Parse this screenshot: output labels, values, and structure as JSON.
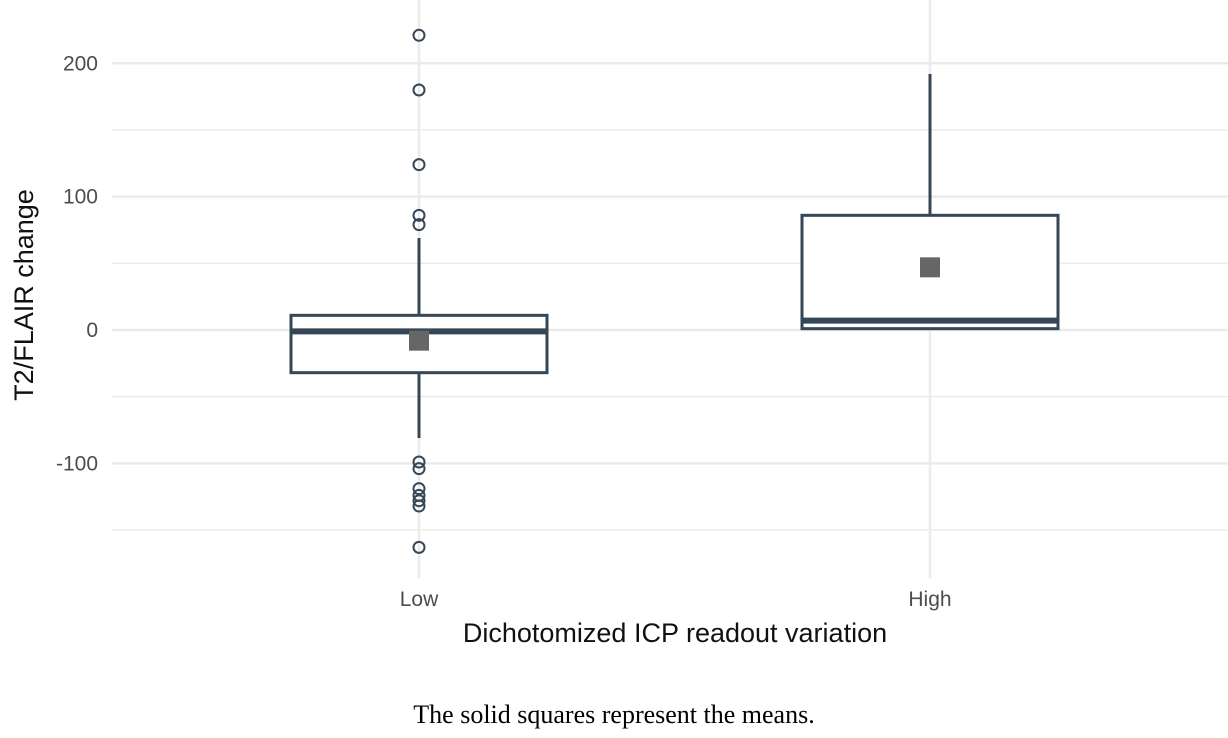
{
  "chart_data": {
    "type": "boxplot",
    "xlabel": "Dichotomized ICP readout variation",
    "ylabel": "T2/FLAIR change",
    "categories": [
      "Low",
      "High"
    ],
    "ylim": [
      -175,
      235
    ],
    "yticks": [
      -100,
      0,
      100,
      200
    ],
    "y_minor_ticks": [
      -150,
      -50,
      50,
      150
    ],
    "grid": true,
    "legend": "none",
    "boxes": [
      {
        "category": "Low",
        "q1": -32,
        "median": -1,
        "q3": 11,
        "whisker_low": -81,
        "whisker_high": 69,
        "mean": -8,
        "outliers": [
          221,
          180,
          124,
          86,
          79,
          -99,
          -104,
          -119,
          -124,
          -128,
          -132,
          -163
        ]
      },
      {
        "category": "High",
        "q1": 1,
        "median": 7,
        "q3": 86,
        "whisker_low": 0,
        "whisker_high": 192,
        "mean": 47,
        "outliers": []
      }
    ],
    "colors": {
      "box": "#354656",
      "mean_marker": "#666666",
      "grid": "#ebebeb"
    }
  },
  "caption": "The solid squares represent the means."
}
